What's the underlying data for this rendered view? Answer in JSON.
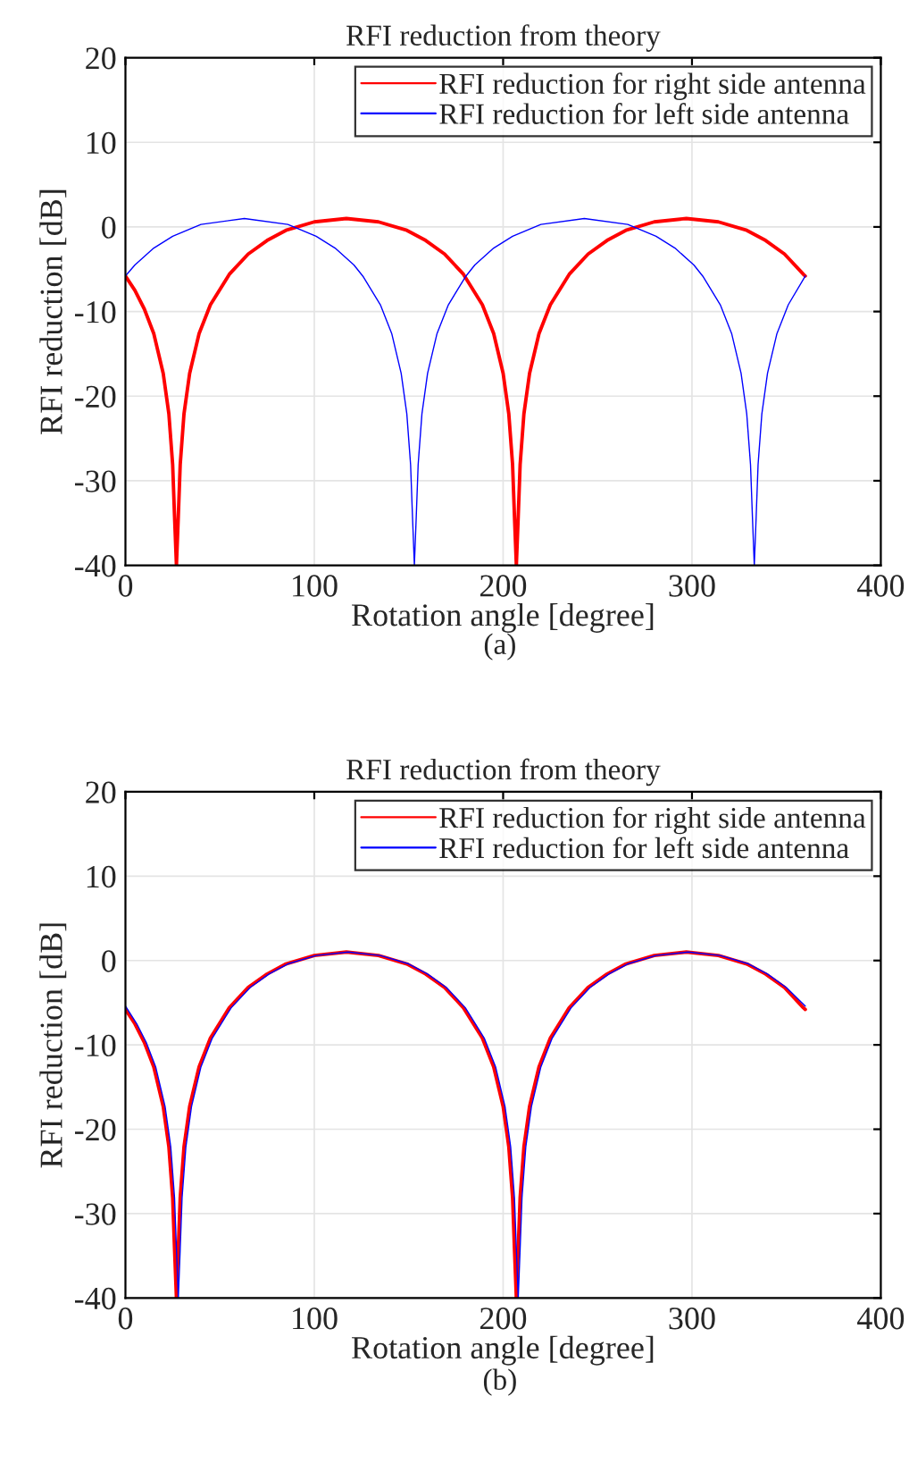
{
  "chart_data": [
    {
      "type": "line",
      "title": "RFI reduction from theory",
      "xlabel": "Rotation angle [degree]",
      "ylabel": "RFI reduction [dB]",
      "xlim": [
        0,
        400
      ],
      "ylim": [
        -40,
        20
      ],
      "xticks": [
        0,
        100,
        200,
        300,
        400
      ],
      "yticks": [
        -40,
        -30,
        -20,
        -10,
        0,
        10,
        20
      ],
      "grid": true,
      "legend": "top right",
      "annotations": [
        "(a)"
      ],
      "series": [
        {
          "name": "RFI reduction for right side antenna",
          "color": "#ff0000",
          "x": [
            0,
            5,
            10,
            15,
            20,
            23,
            25,
            26,
            27,
            28,
            29,
            31,
            34,
            39,
            45,
            55,
            65,
            75,
            85,
            100,
            117,
            134,
            149,
            159,
            169,
            179,
            189,
            195,
            200,
            203,
            205,
            206,
            207,
            208,
            209,
            211,
            214,
            219,
            225,
            235,
            245,
            255,
            265,
            280,
            297,
            314,
            329,
            339,
            349,
            359,
            360
          ],
          "values": [
            -5.8,
            -7.5,
            -9.7,
            -12.6,
            -17.3,
            -22.1,
            -28.1,
            -34.2,
            -40,
            -34.2,
            -28.1,
            -22.1,
            -17.3,
            -12.6,
            -9.2,
            -5.6,
            -3.2,
            -1.6,
            -0.4,
            0.6,
            1,
            0.6,
            -0.4,
            -1.6,
            -3.2,
            -5.6,
            -9.2,
            -12.6,
            -17.3,
            -22.1,
            -28.1,
            -34.2,
            -40,
            -34.2,
            -28.1,
            -22.1,
            -17.3,
            -12.6,
            -9.2,
            -5.6,
            -3.2,
            -1.6,
            -0.4,
            0.6,
            1,
            0.6,
            -0.4,
            -1.6,
            -3.2,
            -5.6,
            -5.8
          ]
        },
        {
          "name": "RFI reduction for left side antenna",
          "color": "#0000ff",
          "x": [
            0,
            5,
            15,
            25,
            40,
            63,
            86,
            101,
            111,
            121,
            126,
            135,
            141,
            146,
            149,
            151,
            152,
            153,
            154,
            155,
            157,
            160,
            165,
            171,
            180,
            185,
            195,
            205,
            220,
            243,
            266,
            281,
            291,
            301,
            306,
            315,
            321,
            326,
            329,
            331,
            332,
            333,
            334,
            335,
            337,
            340,
            345,
            351,
            360
          ],
          "values": [
            -5.8,
            -4.5,
            -2.5,
            -1.1,
            0.3,
            1,
            0.3,
            -1.1,
            -2.5,
            -4.5,
            -5.9,
            -9.2,
            -12.6,
            -17.3,
            -22.1,
            -28.1,
            -34.2,
            -40,
            -34.2,
            -28.1,
            -22.1,
            -17.3,
            -12.6,
            -9.2,
            -5.9,
            -4.5,
            -2.5,
            -1.1,
            0.3,
            1,
            0.3,
            -1.1,
            -2.5,
            -4.5,
            -5.9,
            -9.2,
            -12.6,
            -17.3,
            -22.1,
            -28.1,
            -34.2,
            -40,
            -34.2,
            -28.1,
            -22.1,
            -17.3,
            -12.6,
            -9.2,
            -5.8
          ]
        }
      ]
    },
    {
      "type": "line",
      "title": "RFI reduction from theory",
      "xlabel": "Rotation angle [degree]",
      "ylabel": "RFI reduction [dB]",
      "xlim": [
        0,
        400
      ],
      "ylim": [
        -40,
        20
      ],
      "xticks": [
        0,
        100,
        200,
        300,
        400
      ],
      "yticks": [
        -40,
        -30,
        -20,
        -10,
        0,
        10,
        20
      ],
      "grid": true,
      "legend": "top right",
      "annotations": [
        "(b)"
      ],
      "series": [
        {
          "name": "RFI reduction for right side antenna",
          "color": "#ff0000",
          "x": [
            0,
            5,
            10,
            15,
            20,
            23,
            25,
            26,
            27,
            28,
            29,
            31,
            34,
            39,
            45,
            55,
            65,
            75,
            85,
            100,
            117,
            134,
            149,
            159,
            169,
            179,
            189,
            195,
            200,
            203,
            205,
            206,
            207,
            208,
            209,
            211,
            214,
            219,
            225,
            235,
            245,
            255,
            265,
            280,
            297,
            314,
            329,
            339,
            349,
            359,
            360
          ],
          "values": [
            -5.8,
            -7.5,
            -9.7,
            -12.6,
            -17.3,
            -22.1,
            -28.1,
            -34.2,
            -40,
            -34.2,
            -28.1,
            -22.1,
            -17.3,
            -12.6,
            -9.2,
            -5.6,
            -3.2,
            -1.6,
            -0.4,
            0.6,
            1,
            0.6,
            -0.4,
            -1.6,
            -3.2,
            -5.6,
            -9.2,
            -12.6,
            -17.3,
            -22.1,
            -28.1,
            -34.2,
            -40,
            -34.2,
            -28.1,
            -22.1,
            -17.3,
            -12.6,
            -9.2,
            -5.6,
            -3.2,
            -1.6,
            -0.4,
            0.6,
            1,
            0.6,
            -0.4,
            -1.6,
            -3.2,
            -5.6,
            -5.8
          ]
        },
        {
          "name": "RFI reduction for left side antenna",
          "color": "#0000ff",
          "x": [
            0,
            6,
            11,
            16,
            21,
            24,
            26,
            27,
            28,
            29,
            30,
            32,
            35,
            40,
            46,
            56,
            66,
            76,
            86,
            101,
            118,
            135,
            150,
            160,
            170,
            180,
            190,
            196,
            201,
            204,
            206,
            207,
            208,
            209,
            210,
            212,
            215,
            220,
            226,
            236,
            246,
            256,
            266,
            281,
            298,
            315,
            330,
            340,
            350,
            360
          ],
          "values": [
            -5.4,
            -7.5,
            -9.7,
            -12.6,
            -17.3,
            -22.1,
            -28.1,
            -34.2,
            -40,
            -34.2,
            -28.1,
            -22.1,
            -17.3,
            -12.6,
            -9.2,
            -5.6,
            -3.2,
            -1.6,
            -0.4,
            0.6,
            1,
            0.6,
            -0.4,
            -1.6,
            -3.2,
            -5.6,
            -9.2,
            -12.6,
            -17.3,
            -22.1,
            -28.1,
            -34.2,
            -40,
            -34.2,
            -28.1,
            -22.1,
            -17.3,
            -12.6,
            -9.2,
            -5.6,
            -3.2,
            -1.6,
            -0.4,
            0.6,
            1,
            0.6,
            -0.4,
            -1.6,
            -3.2,
            -5.4
          ]
        }
      ]
    }
  ]
}
